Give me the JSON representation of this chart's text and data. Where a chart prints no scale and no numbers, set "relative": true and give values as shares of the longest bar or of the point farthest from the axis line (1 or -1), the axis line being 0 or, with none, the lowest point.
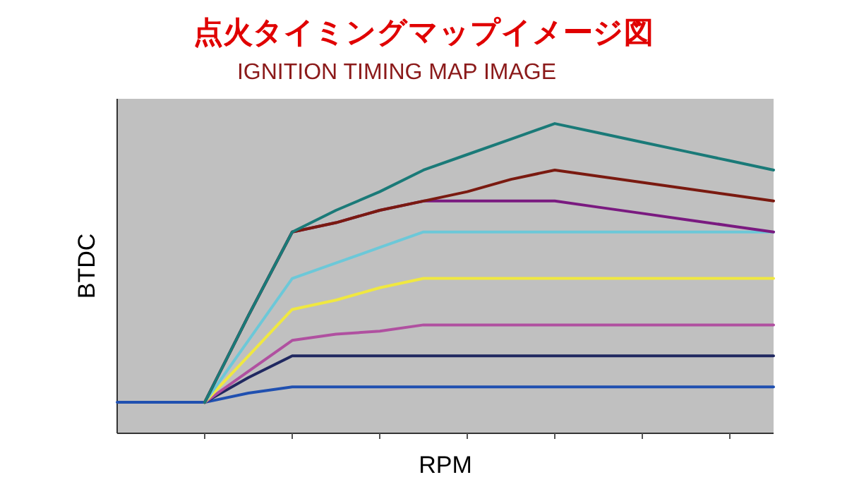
{
  "chart_data": {
    "type": "line",
    "title": "点火タイミングマップイメージ図",
    "subtitle": "IGNITION TIMING MAP IMAGE",
    "xlabel": "RPM",
    "ylabel": "BTDC",
    "relative": true,
    "categories": [
      null,
      null,
      null,
      null,
      null,
      null,
      null,
      null,
      null,
      null,
      null,
      null,
      null,
      null,
      null,
      null
    ],
    "series": [
      {
        "color": "#2050b0",
        "values": [
          0.1,
          0.1,
          0.1,
          0.13,
          0.15,
          0.15,
          0.15,
          0.15,
          0.15,
          0.15,
          0.15,
          0.15,
          0.15,
          0.15,
          0.15,
          0.15
        ]
      },
      {
        "color": "#202860",
        "values": [
          null,
          null,
          0.1,
          0.18,
          0.25,
          0.25,
          0.25,
          0.25,
          0.25,
          0.25,
          0.25,
          0.25,
          0.25,
          0.25,
          0.25,
          0.25
        ]
      },
      {
        "color": "#b050a0",
        "values": [
          null,
          null,
          0.1,
          0.2,
          0.3,
          0.32,
          0.33,
          0.35,
          0.35,
          0.35,
          0.35,
          0.35,
          0.35,
          0.35,
          0.35,
          0.35
        ]
      },
      {
        "color": "#f0e840",
        "values": [
          null,
          null,
          0.1,
          0.25,
          0.4,
          0.43,
          0.47,
          0.5,
          0.5,
          0.5,
          0.5,
          0.5,
          0.5,
          0.5,
          0.5,
          0.5
        ]
      },
      {
        "color": "#6cc8d8",
        "values": [
          null,
          null,
          0.1,
          0.3,
          0.5,
          0.55,
          0.6,
          0.65,
          0.65,
          0.65,
          0.65,
          0.65,
          0.65,
          0.65,
          0.65,
          0.65
        ]
      },
      {
        "color": "#7a1a80",
        "values": [
          null,
          null,
          0.1,
          0.38,
          0.65,
          0.68,
          0.72,
          0.75,
          0.75,
          0.75,
          0.75,
          0.73,
          0.71,
          0.69,
          0.67,
          0.65
        ]
      },
      {
        "color": "#7a1a10",
        "values": [
          null,
          null,
          0.1,
          0.38,
          0.65,
          0.68,
          0.72,
          0.75,
          0.78,
          0.82,
          0.85,
          0.83,
          0.81,
          0.79,
          0.77,
          0.75
        ]
      },
      {
        "color": "#1a7a78",
        "values": [
          null,
          null,
          0.1,
          0.38,
          0.65,
          0.72,
          0.78,
          0.85,
          0.9,
          0.95,
          1,
          0.97,
          0.94,
          0.91,
          0.88,
          0.85
        ]
      }
    ]
  }
}
